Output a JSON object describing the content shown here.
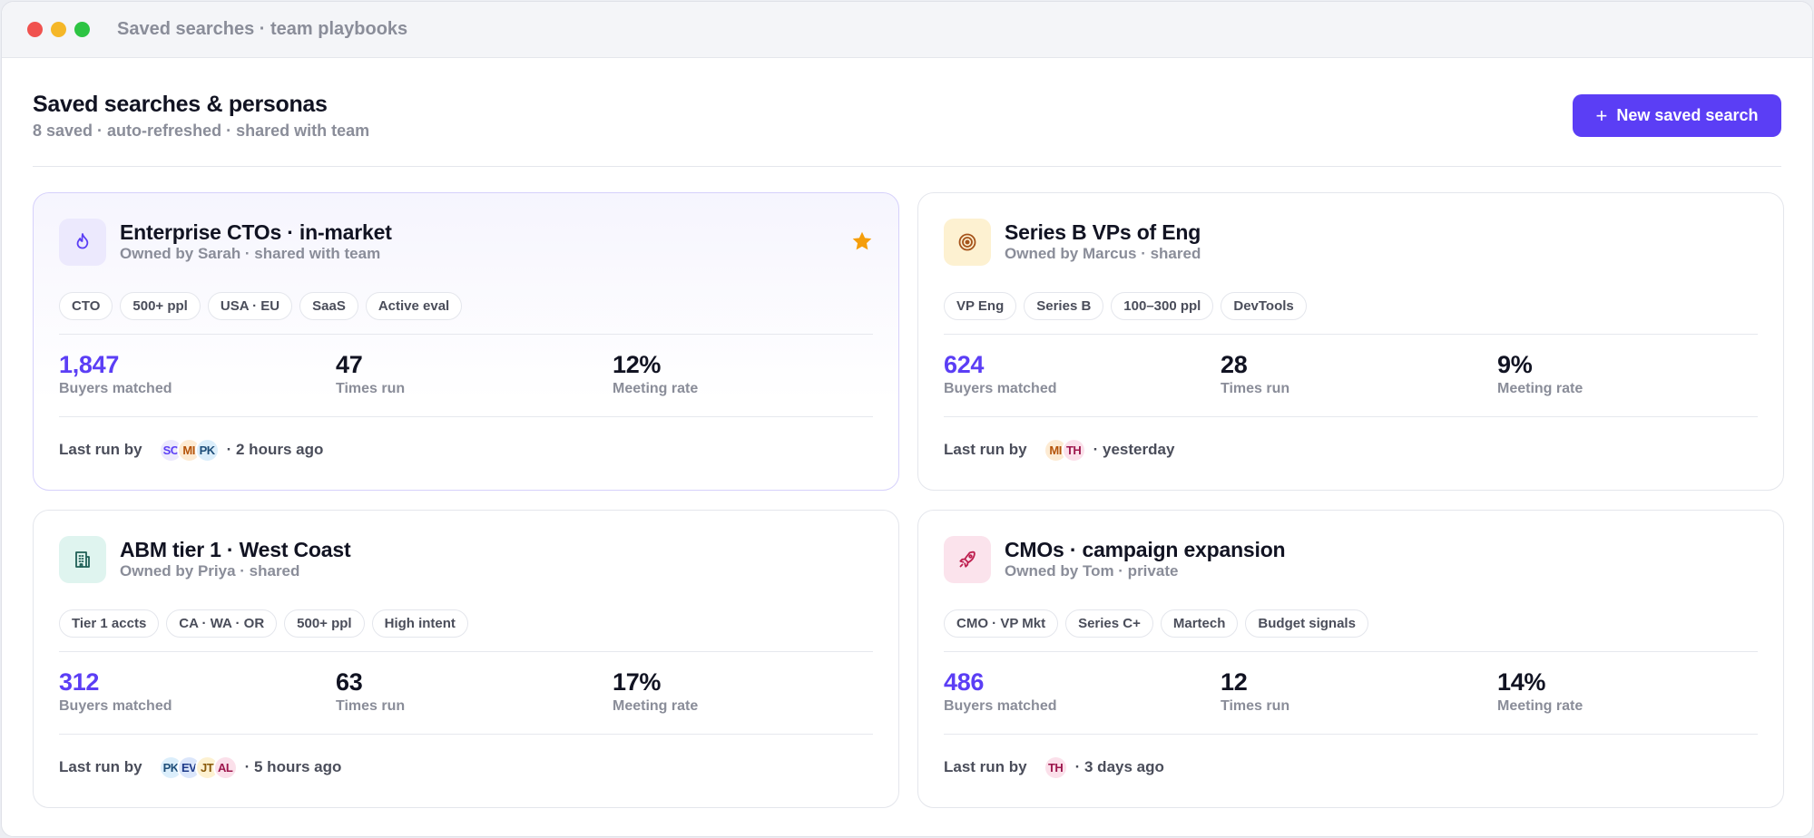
{
  "window": {
    "title": "Saved searches · team playbooks"
  },
  "header": {
    "title": "Saved searches & personas",
    "subtitle": "8 saved · auto-refreshed · shared with team",
    "new_button_label": "New saved search",
    "new_button_icon": "plus-icon"
  },
  "colors": {
    "accent": "#5b3ef5",
    "star": "#f59e0b"
  },
  "cards": [
    {
      "title": "Enterprise CTOs · in-market",
      "owner": "Owned by Sarah · shared with team",
      "icon": "flame-icon",
      "starred": true,
      "tags": [
        "CTO",
        "500+ ppl",
        "USA · EU",
        "SaaS",
        "Active eval"
      ],
      "stats": [
        {
          "value": "1,847",
          "label": "Buyers matched"
        },
        {
          "value": "47",
          "label": "Times run"
        },
        {
          "value": "12%",
          "label": "Meeting rate"
        }
      ],
      "last_run_label": "Last run by",
      "avatars": [
        "SC",
        "MI",
        "PK"
      ],
      "last_run_time": "· 2 hours ago"
    },
    {
      "title": "Series B VPs of Eng",
      "owner": "Owned by Marcus · shared",
      "icon": "target-icon",
      "starred": false,
      "tags": [
        "VP Eng",
        "Series B",
        "100–300 ppl",
        "DevTools"
      ],
      "stats": [
        {
          "value": "624",
          "label": "Buyers matched"
        },
        {
          "value": "28",
          "label": "Times run"
        },
        {
          "value": "9%",
          "label": "Meeting rate"
        }
      ],
      "last_run_label": "Last run by",
      "avatars": [
        "MI",
        "TH"
      ],
      "last_run_time": "· yesterday"
    },
    {
      "title": "ABM tier 1 · West Coast",
      "owner": "Owned by Priya · shared",
      "icon": "building-icon",
      "starred": false,
      "tags": [
        "Tier 1 accts",
        "CA · WA · OR",
        "500+ ppl",
        "High intent"
      ],
      "stats": [
        {
          "value": "312",
          "label": "Buyers matched"
        },
        {
          "value": "63",
          "label": "Times run"
        },
        {
          "value": "17%",
          "label": "Meeting rate"
        }
      ],
      "last_run_label": "Last run by",
      "avatars": [
        "PK",
        "EV",
        "JT",
        "AL"
      ],
      "last_run_time": "· 5 hours ago"
    },
    {
      "title": "CMOs · campaign expansion",
      "owner": "Owned by Tom · private",
      "icon": "rocket-icon",
      "starred": false,
      "tags": [
        "CMO · VP Mkt",
        "Series C+",
        "Martech",
        "Budget signals"
      ],
      "stats": [
        {
          "value": "486",
          "label": "Buyers matched"
        },
        {
          "value": "12",
          "label": "Times run"
        },
        {
          "value": "14%",
          "label": "Meeting rate"
        }
      ],
      "last_run_label": "Last run by",
      "avatars": [
        "TH"
      ],
      "last_run_time": "· 3 days ago"
    }
  ]
}
